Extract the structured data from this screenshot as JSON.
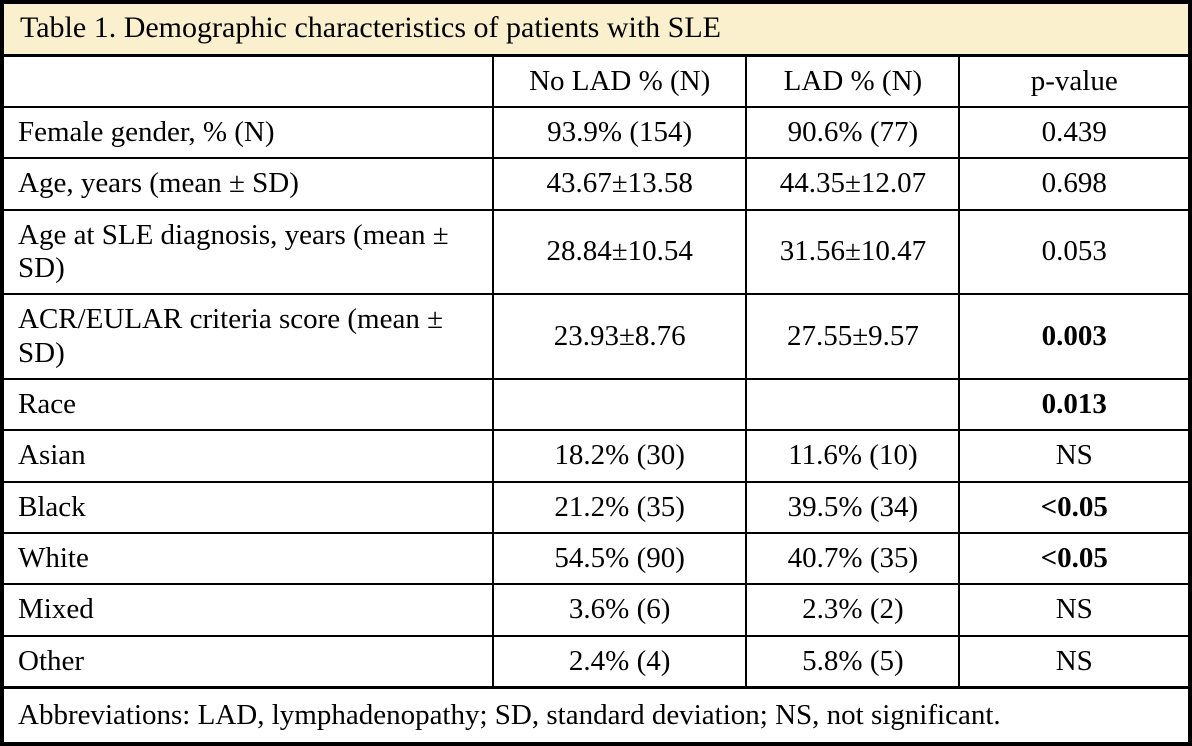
{
  "table": {
    "title": "Table 1. Demographic characteristics of patients with SLE",
    "columns": [
      "",
      "No LAD % (N)",
      "LAD % (N)",
      "p-value"
    ],
    "rows": [
      {
        "label": "Female gender, % (N)",
        "no_lad": "93.9% (154)",
        "lad": "90.6% (77)",
        "p": "0.439",
        "p_bold": false
      },
      {
        "label": "Age, years (mean ± SD)",
        "no_lad": "43.67±13.58",
        "lad": "44.35±12.07",
        "p": "0.698",
        "p_bold": false
      },
      {
        "label": "Age at SLE diagnosis, years (mean ± SD)",
        "no_lad": "28.84±10.54",
        "lad": "31.56±10.47",
        "p": "0.053",
        "p_bold": false
      },
      {
        "label": "ACR/EULAR criteria score (mean ± SD)",
        "no_lad": "23.93±8.76",
        "lad": "27.55±9.57",
        "p": "0.003",
        "p_bold": true
      },
      {
        "label": "Race",
        "no_lad": "",
        "lad": "",
        "p": "0.013",
        "p_bold": true
      },
      {
        "label": "Asian",
        "no_lad": "18.2% (30)",
        "lad": "11.6% (10)",
        "p": "NS",
        "p_bold": false
      },
      {
        "label": "Black",
        "no_lad": "21.2% (35)",
        "lad": "39.5% (34)",
        "p": "<0.05",
        "p_bold": true
      },
      {
        "label": "White",
        "no_lad": "54.5% (90)",
        "lad": "40.7% (35)",
        "p": "<0.05",
        "p_bold": true
      },
      {
        "label": "Mixed",
        "no_lad": "3.6% (6)",
        "lad": "2.3% (2)",
        "p": "NS",
        "p_bold": false
      },
      {
        "label": "Other",
        "no_lad": "2.4% (4)",
        "lad": "5.8% (5)",
        "p": "NS",
        "p_bold": false
      }
    ],
    "footnote": "Abbreviations: LAD, lymphadenopathy; SD, standard deviation; NS, not significant."
  }
}
